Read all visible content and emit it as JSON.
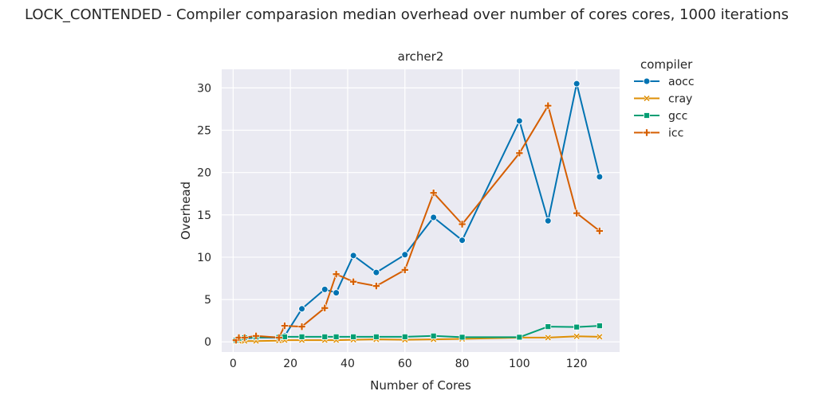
{
  "chart_data": {
    "type": "line",
    "suptitle": "LOCK_CONTENDED - Compiler comparasion median overhead over number of cores cores, 1000 iterations",
    "title": "archer2",
    "xlabel": "Number of Cores",
    "ylabel": "Overhead",
    "xlim": [
      -4,
      135
    ],
    "ylim": [
      -1.2,
      32.2
    ],
    "xticks": [
      0,
      20,
      40,
      60,
      80,
      100,
      120
    ],
    "yticks": [
      0,
      5,
      10,
      15,
      20,
      25,
      30
    ],
    "grid": true,
    "legend": {
      "title": "compiler",
      "placement": "outside-right"
    },
    "series": [
      {
        "name": "aocc",
        "color": "#0173b2",
        "marker": "circle",
        "x": [
          1,
          2,
          4,
          8,
          16,
          18,
          24,
          32,
          36,
          42,
          50,
          60,
          70,
          80,
          100,
          110,
          120,
          128
        ],
        "y": [
          0.1,
          0.3,
          0.4,
          0.5,
          0.5,
          0.7,
          3.9,
          6.2,
          5.8,
          10.2,
          8.2,
          10.3,
          14.7,
          12.0,
          26.1,
          14.3,
          30.5,
          19.5
        ]
      },
      {
        "name": "cray",
        "color": "#de8f05",
        "marker": "x",
        "x": [
          1,
          2,
          4,
          8,
          16,
          18,
          24,
          32,
          36,
          42,
          50,
          60,
          70,
          80,
          100,
          110,
          120,
          128
        ],
        "y": [
          0.1,
          0.1,
          0.1,
          0.1,
          0.15,
          0.2,
          0.2,
          0.2,
          0.2,
          0.25,
          0.3,
          0.25,
          0.3,
          0.35,
          0.5,
          0.5,
          0.65,
          0.6
        ]
      },
      {
        "name": "gcc",
        "color": "#029e73",
        "marker": "square",
        "x": [
          1,
          2,
          4,
          8,
          16,
          18,
          24,
          32,
          36,
          42,
          50,
          60,
          70,
          80,
          100,
          110,
          120,
          128
        ],
        "y": [
          0.2,
          0.4,
          0.5,
          0.55,
          0.55,
          0.6,
          0.6,
          0.6,
          0.6,
          0.6,
          0.6,
          0.6,
          0.7,
          0.55,
          0.55,
          1.8,
          1.75,
          1.9
        ]
      },
      {
        "name": "icc",
        "color": "#d55e00",
        "marker": "plus",
        "x": [
          1,
          2,
          4,
          8,
          16,
          18,
          24,
          32,
          36,
          42,
          50,
          60,
          70,
          80,
          100,
          110,
          120,
          128
        ],
        "y": [
          0.2,
          0.5,
          0.5,
          0.7,
          0.5,
          1.9,
          1.8,
          4.0,
          8.0,
          7.1,
          6.6,
          8.5,
          17.6,
          13.9,
          22.3,
          27.9,
          15.2,
          13.1
        ]
      }
    ]
  }
}
